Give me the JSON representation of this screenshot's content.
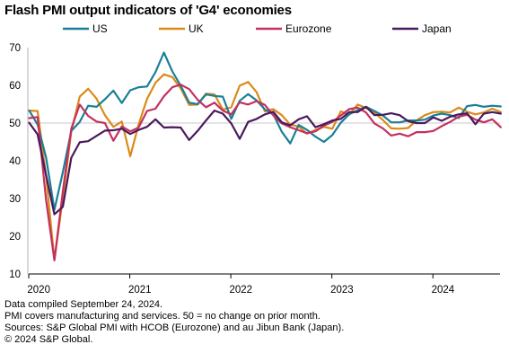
{
  "title": "Flash PMI output indicators of 'G4' economies",
  "footnotes": [
    "Data compiled September 24, 2024.",
    "PMI covers manufacturing and services. 50 = no change on prior month.",
    "Sources: S&P Global PMI with HCOB (Eurozone) and au Jibun Bank (Japan).",
    "© 2024 S&P Global."
  ],
  "chart_data": {
    "type": "line",
    "title": "Flash PMI output indicators of 'G4' economies",
    "xlabel": "",
    "ylabel": "",
    "ylim": [
      10,
      70
    ],
    "yticks": [
      10,
      20,
      30,
      40,
      50,
      60,
      70
    ],
    "xlim": [
      "2020-01",
      "2024-09"
    ],
    "xticks": [
      "2020",
      "2021",
      "2022",
      "2023",
      "2024"
    ],
    "grid": false,
    "reference_line": 50,
    "legend": "top",
    "x": [
      "2020-01",
      "2020-02",
      "2020-03",
      "2020-04",
      "2020-05",
      "2020-06",
      "2020-07",
      "2020-08",
      "2020-09",
      "2020-10",
      "2020-11",
      "2020-12",
      "2021-01",
      "2021-02",
      "2021-03",
      "2021-04",
      "2021-05",
      "2021-06",
      "2021-07",
      "2021-08",
      "2021-09",
      "2021-10",
      "2021-11",
      "2021-12",
      "2022-01",
      "2022-02",
      "2022-03",
      "2022-04",
      "2022-05",
      "2022-06",
      "2022-07",
      "2022-08",
      "2022-09",
      "2022-10",
      "2022-11",
      "2022-12",
      "2023-01",
      "2023-02",
      "2023-03",
      "2023-04",
      "2023-05",
      "2023-06",
      "2023-07",
      "2023-08",
      "2023-09",
      "2023-10",
      "2023-11",
      "2023-12",
      "2024-01",
      "2024-02",
      "2024-03",
      "2024-04",
      "2024-05",
      "2024-06",
      "2024-07",
      "2024-08",
      "2024-09"
    ],
    "series": [
      {
        "name": "US",
        "color": "#1a7f96",
        "values": [
          53.3,
          49.6,
          40.9,
          27.0,
          37.0,
          47.9,
          50.3,
          54.6,
          54.3,
          56.3,
          58.6,
          55.3,
          58.7,
          59.5,
          59.7,
          63.5,
          68.7,
          63.7,
          59.9,
          55.4,
          55.0,
          57.6,
          57.2,
          57.0,
          51.1,
          55.9,
          57.7,
          56.0,
          53.6,
          52.3,
          47.7,
          44.6,
          49.5,
          48.2,
          46.4,
          45.0,
          46.8,
          50.1,
          52.3,
          53.4,
          54.3,
          53.2,
          52.0,
          50.2,
          50.2,
          50.7,
          50.7,
          50.9,
          52.0,
          52.5,
          52.1,
          51.3,
          54.5,
          54.8,
          54.3,
          54.6,
          54.4
        ]
      },
      {
        "name": "UK",
        "color": "#d98b19",
        "values": [
          53.3,
          53.2,
          36.0,
          13.8,
          30.0,
          47.7,
          57.0,
          59.1,
          56.5,
          52.1,
          49.0,
          50.4,
          41.2,
          49.6,
          56.4,
          60.7,
          62.9,
          62.2,
          59.2,
          54.8,
          54.9,
          57.8,
          57.6,
          53.6,
          54.2,
          59.9,
          60.9,
          58.2,
          53.1,
          53.7,
          52.1,
          49.6,
          49.1,
          47.2,
          48.2,
          49.0,
          48.5,
          53.1,
          52.2,
          54.9,
          54.0,
          52.8,
          50.8,
          48.6,
          48.5,
          48.7,
          50.7,
          52.1,
          52.9,
          53.0,
          52.8,
          54.1,
          53.0,
          52.3,
          52.8,
          53.8,
          52.9
        ]
      },
      {
        "name": "Eurozone",
        "color": "#c4305f",
        "values": [
          51.3,
          51.6,
          29.7,
          13.6,
          31.9,
          48.5,
          54.9,
          51.9,
          50.4,
          50.0,
          45.3,
          49.1,
          47.8,
          48.8,
          53.2,
          53.8,
          57.1,
          59.5,
          60.2,
          59.0,
          56.2,
          54.2,
          55.4,
          53.3,
          52.3,
          55.5,
          54.9,
          55.8,
          54.8,
          52.0,
          49.9,
          48.9,
          48.1,
          47.3,
          47.8,
          49.3,
          50.3,
          52.0,
          53.7,
          54.1,
          52.8,
          49.9,
          48.6,
          46.7,
          47.2,
          46.5,
          47.6,
          47.6,
          47.9,
          49.2,
          50.3,
          51.7,
          52.2,
          50.9,
          50.2,
          51.0,
          48.9
        ]
      },
      {
        "name": "Japan",
        "color": "#4a1a5c",
        "values": [
          50.1,
          47.0,
          36.2,
          25.8,
          27.8,
          40.8,
          44.9,
          45.2,
          46.6,
          48.0,
          48.1,
          48.5,
          47.1,
          48.2,
          49.0,
          51.0,
          48.8,
          48.9,
          48.8,
          45.5,
          47.9,
          50.7,
          53.3,
          52.5,
          49.9,
          45.8,
          50.3,
          51.1,
          52.3,
          53.0,
          50.2,
          49.4,
          51.0,
          51.8,
          48.9,
          49.7,
          50.7,
          51.1,
          52.9,
          52.9,
          54.3,
          52.1,
          52.2,
          52.6,
          52.1,
          50.5,
          50.0,
          50.0,
          51.5,
          50.6,
          51.7,
          52.3,
          52.6,
          49.7,
          52.5,
          52.9,
          52.5
        ]
      }
    ]
  }
}
